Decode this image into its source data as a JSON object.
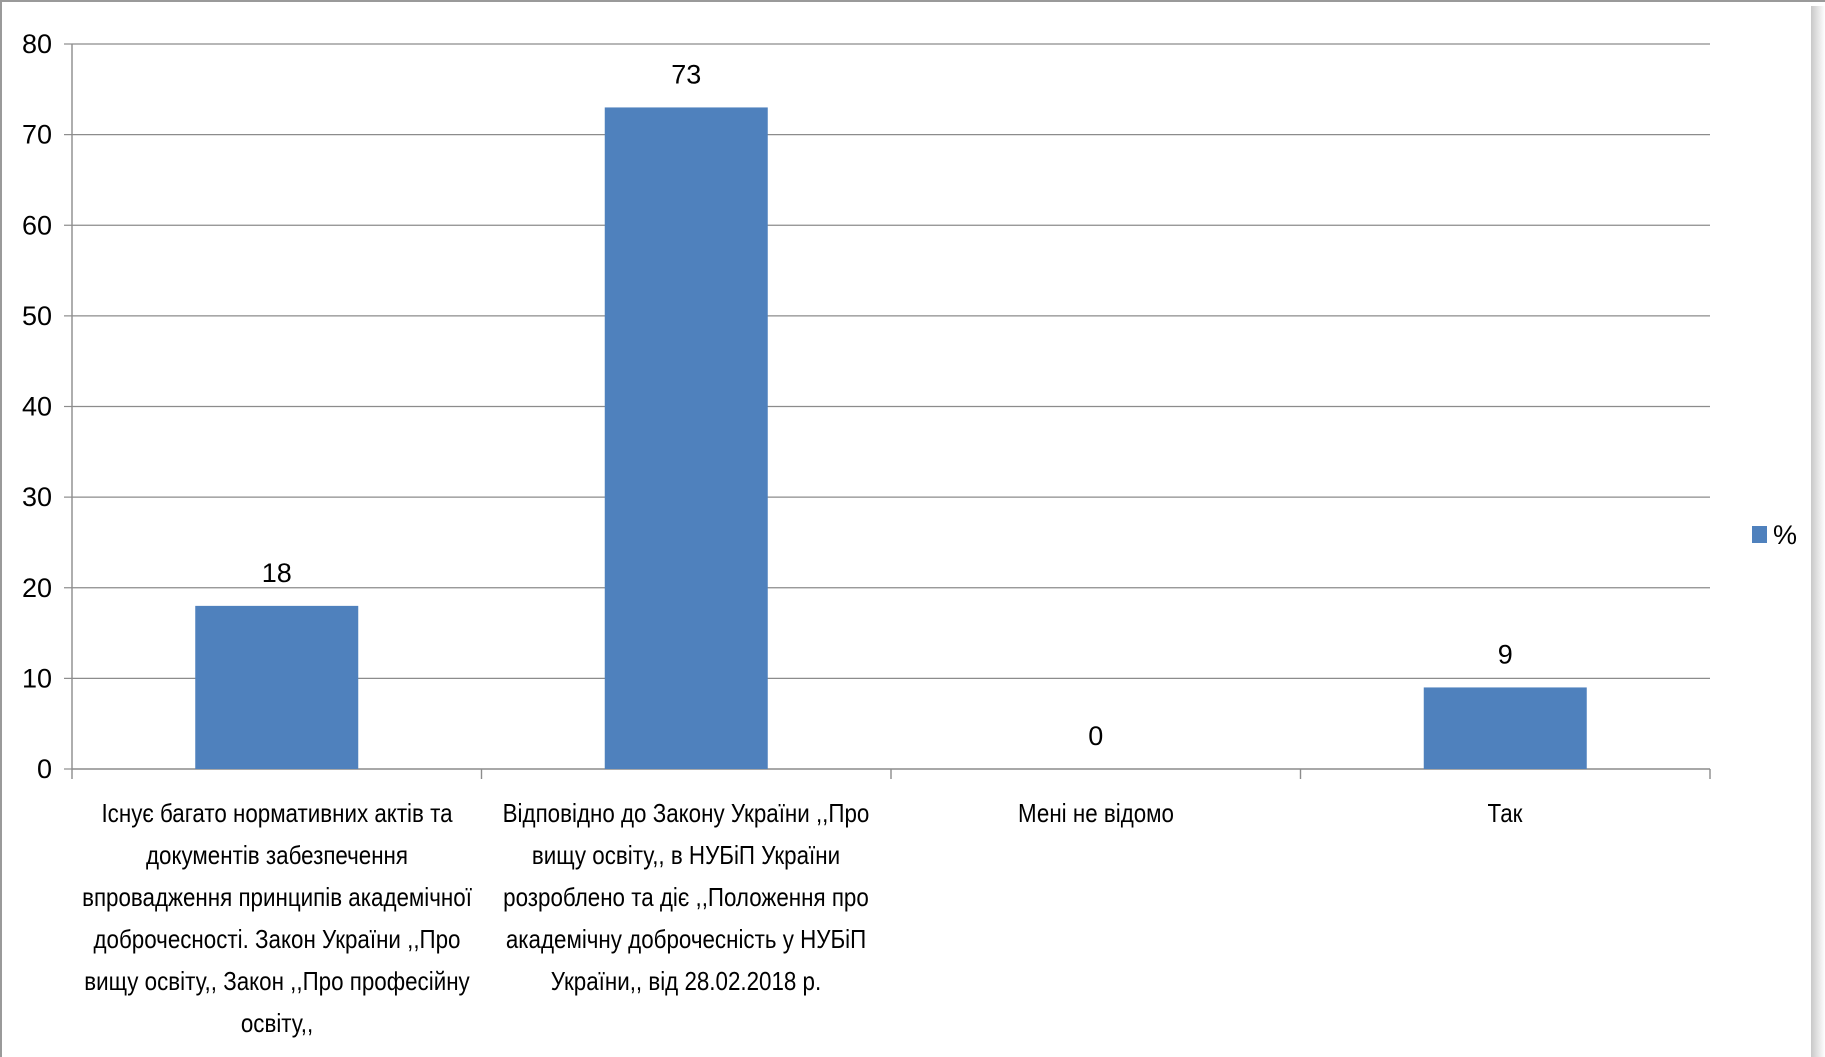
{
  "chart_data": {
    "type": "bar",
    "title": "",
    "xlabel": "",
    "ylabel": "",
    "ylim": [
      0,
      80
    ],
    "ytick_step": 10,
    "yticks": [
      "0",
      "10",
      "20",
      "30",
      "40",
      "50",
      "60",
      "70",
      "80"
    ],
    "grid": true,
    "legend": "right",
    "categories": [
      "Існує багато нормативних актів та документів забезпечення впровадження принципів академічної доброчесності. Закон України ,,Про вищу освіту,, Закон ,,Про професійну освіту,,",
      "Відповідно до Закону України ,,Про вищу освіту,, в НУБіП України розроблено та діє ,,Положення про академічну доброчесність у НУБіП України,, від 28.02.2018 р.",
      "Мені не відомо",
      "Так"
    ],
    "series": [
      {
        "name": "%",
        "color": "#4f81bd",
        "values": [
          18,
          73,
          0,
          9
        ],
        "data_labels": [
          "18",
          "73",
          "0",
          "9"
        ]
      }
    ]
  }
}
